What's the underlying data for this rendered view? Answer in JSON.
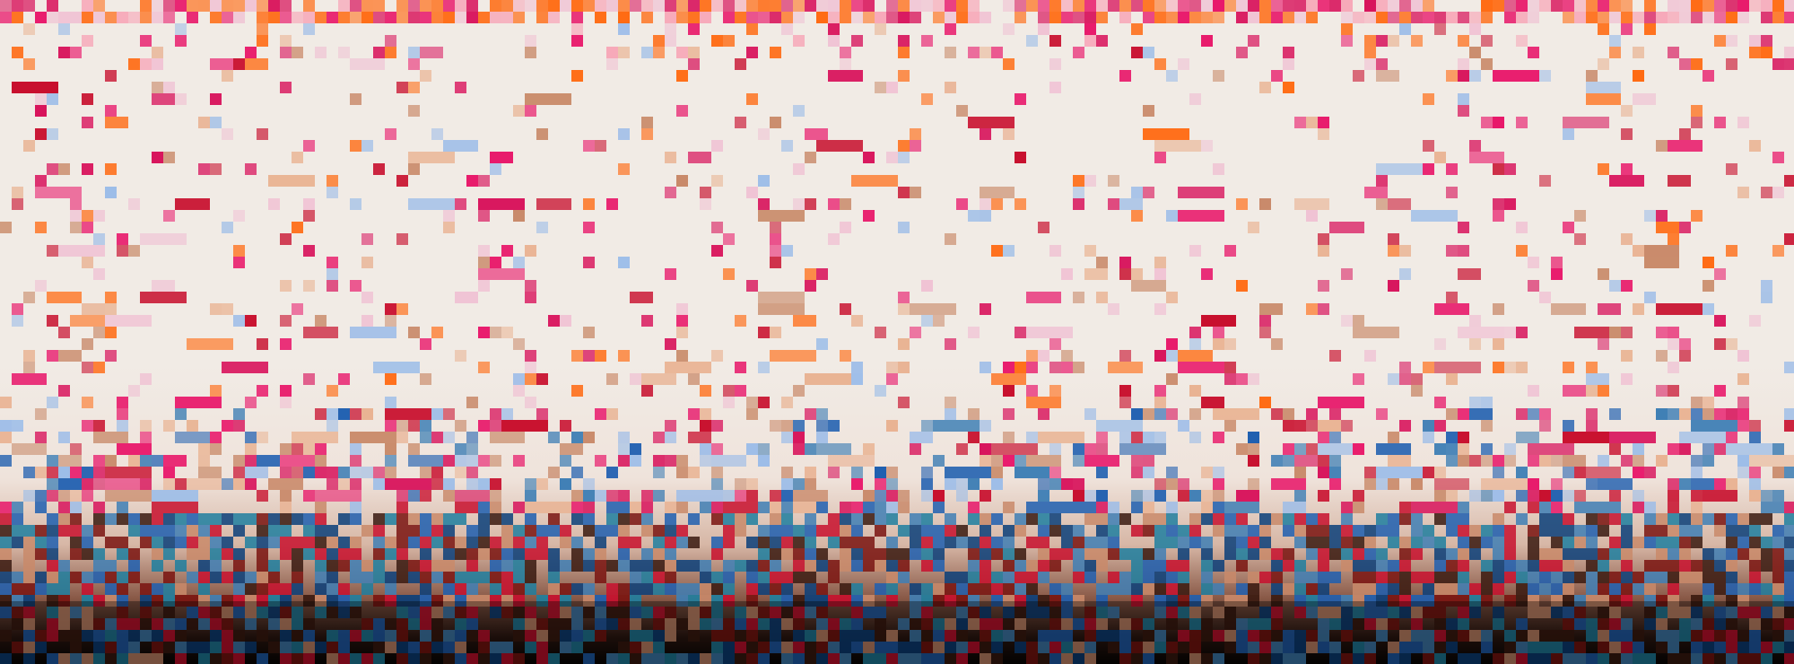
{
  "image": {
    "description_kind": "abstract-pixel-mosaic",
    "text_visible": false
  },
  "palette": {
    "background": "#f1ebe5",
    "top_band_pink": "#f7a7b8",
    "orange": "#ff6a12",
    "hot_pink": "#e8186a",
    "magenta": "#d8145c",
    "crimson": "#c8102e",
    "peach": "#e9b393",
    "tan": "#c98a6a",
    "light_blue": "#9dbde8",
    "pale_pink": "#f0c3d4",
    "steel_blue": "#3f7fb5",
    "royal_blue": "#1f5fb0",
    "teal": "#1f7fa0",
    "navy": "#0b3f7a",
    "dark_brown": "#3a1a10",
    "black": "#090604",
    "dark_red": "#7a1410"
  },
  "gradient": {
    "top": "#f1ebe5",
    "bottom": "#060403"
  }
}
